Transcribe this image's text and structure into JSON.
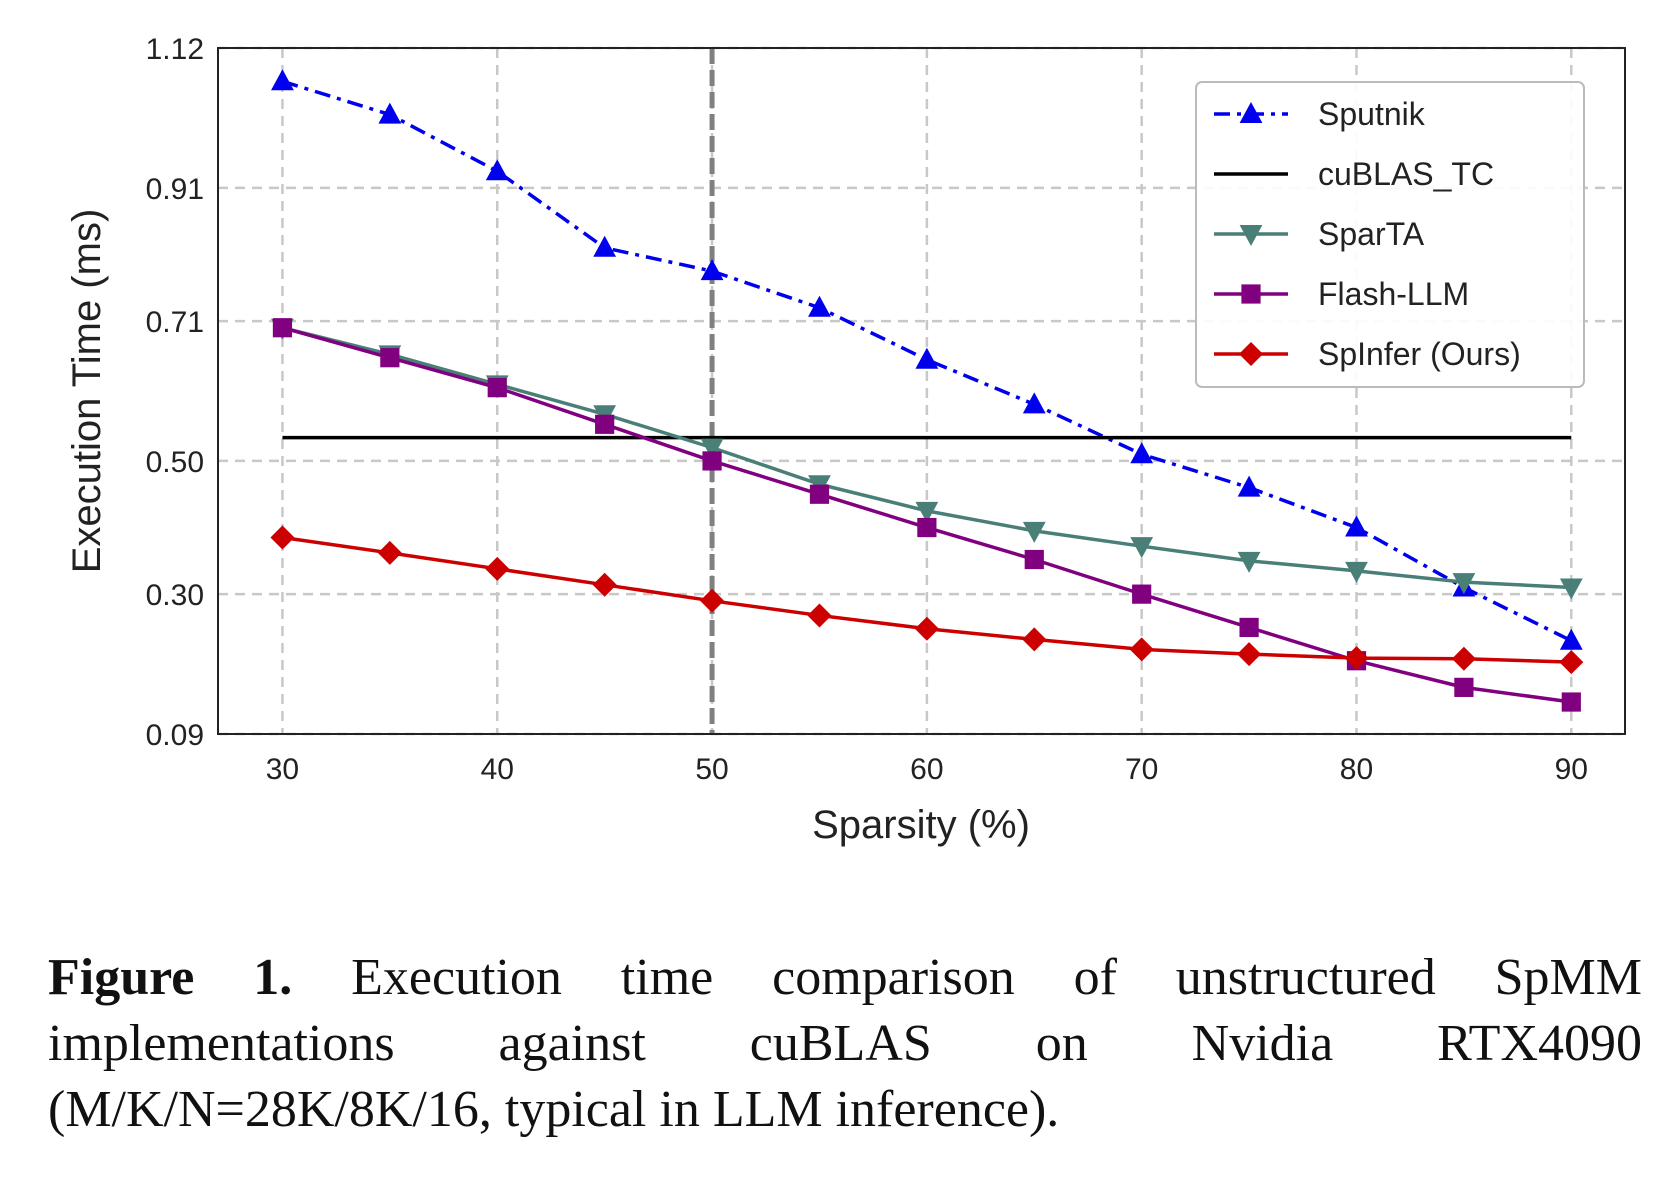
{
  "chart_data": {
    "type": "line",
    "xlabel": "Sparsity (%)",
    "ylabel": "Execution Time (ms)",
    "x": [
      30,
      35,
      40,
      45,
      50,
      55,
      60,
      65,
      70,
      75,
      80,
      85,
      90
    ],
    "x_ticks": [
      "30",
      "40",
      "50",
      "60",
      "70",
      "80",
      "90"
    ],
    "y_ticks": [
      "0.09",
      "0.30",
      "0.50",
      "0.71",
      "0.91",
      "1.12"
    ],
    "xlim": [
      27,
      92.5
    ],
    "ylim": [
      0.09,
      1.12
    ],
    "grid": true,
    "legend_position": "top-right",
    "reference_line_x": 50,
    "series": [
      {
        "name": "Sputnik",
        "color": "#0000ee",
        "style": "dashdot",
        "marker": "triangle-up",
        "values": [
          1.07,
          1.02,
          0.935,
          0.82,
          0.785,
          0.73,
          0.652,
          0.585,
          0.51,
          0.46,
          0.4,
          0.31,
          0.23
        ]
      },
      {
        "name": "cuBLAS_TC",
        "color": "#000000",
        "style": "solid",
        "marker": "none",
        "values": [
          0.535,
          0.535,
          0.535,
          0.535,
          0.535,
          0.535,
          0.535,
          0.535,
          0.535,
          0.535,
          0.535,
          0.535,
          0.535
        ]
      },
      {
        "name": "SparTA",
        "color": "#4a7f78",
        "style": "solid",
        "marker": "triangle-down",
        "values": [
          0.7,
          0.66,
          0.615,
          0.57,
          0.52,
          0.465,
          0.425,
          0.395,
          0.372,
          0.35,
          0.335,
          0.318,
          0.31
        ]
      },
      {
        "name": "Flash-LLM",
        "color": "#800080",
        "style": "solid",
        "marker": "square",
        "values": [
          0.7,
          0.655,
          0.61,
          0.555,
          0.5,
          0.45,
          0.4,
          0.352,
          0.3,
          0.25,
          0.2,
          0.16,
          0.138
        ]
      },
      {
        "name": "SpInfer (Ours)",
        "color": "#cc0000",
        "style": "solid",
        "marker": "diamond",
        "values": [
          0.385,
          0.362,
          0.338,
          0.314,
          0.29,
          0.268,
          0.248,
          0.232,
          0.217,
          0.21,
          0.204,
          0.203,
          0.198
        ]
      }
    ]
  },
  "caption": {
    "label": "Figure 1.",
    "text": " Execution time comparison of unstructured SpMM implementations against cuBLAS on Nvidia RTX4090 (M/K/N=28K/8K/16, typical in LLM inference)."
  }
}
